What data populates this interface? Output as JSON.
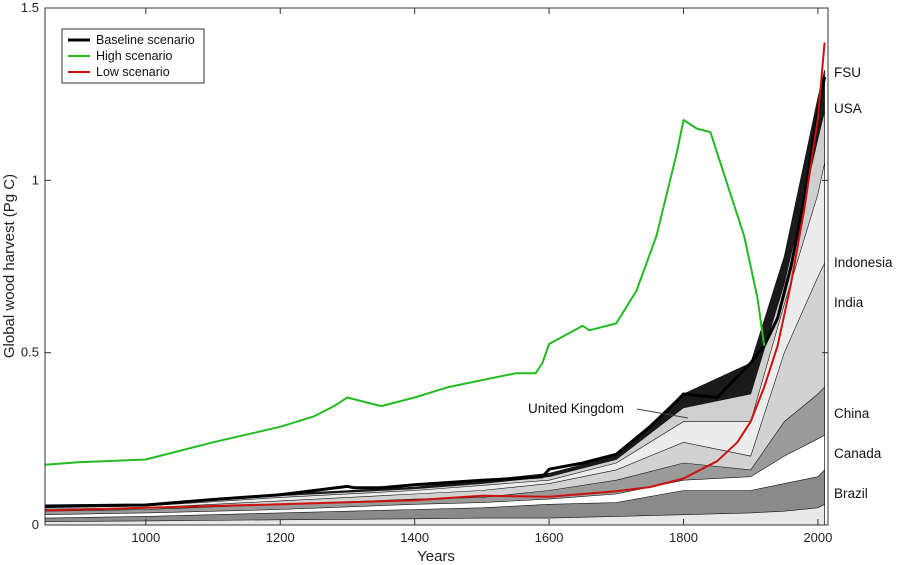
{
  "chart_data": {
    "type": "area",
    "title": "",
    "xlabel": "Years",
    "ylabel": "Global wood harvest (Pg C)",
    "xlim": [
      850,
      2015
    ],
    "ylim": [
      0,
      1.5
    ],
    "x_ticks": [
      1000,
      1200,
      1400,
      1600,
      1800,
      2000
    ],
    "y_ticks": [
      0,
      0.5,
      1,
      1.5
    ],
    "y_tick_labels": [
      "0",
      "0.5",
      "1",
      "1.5"
    ],
    "grid": false,
    "legend_position": "top-left",
    "legend": [
      {
        "label": "Baseline scenario",
        "color": "#000000"
      },
      {
        "label": "High scenario",
        "color": "#22bb22"
      },
      {
        "label": "Low scenario",
        "color": "#cc1111"
      }
    ],
    "country_labels": [
      "FSU",
      "USA",
      "Indonesia",
      "India",
      "China",
      "Canada",
      "Brazil"
    ],
    "annotation": "United Kingdom",
    "series": [
      {
        "name": "Baseline scenario",
        "color": "#000000",
        "x": [
          850,
          1000,
          1100,
          1200,
          1300,
          1310,
          1350,
          1400,
          1500,
          1550,
          1590,
          1600,
          1650,
          1700,
          1750,
          1790,
          1800,
          1850,
          1900,
          1920,
          1940,
          1960,
          1980,
          2000,
          2010
        ],
        "y": [
          0.055,
          0.058,
          0.074,
          0.088,
          0.112,
          0.108,
          0.108,
          0.117,
          0.13,
          0.135,
          0.14,
          0.162,
          0.18,
          0.205,
          0.285,
          0.36,
          0.38,
          0.37,
          0.47,
          0.52,
          0.6,
          0.75,
          0.95,
          1.2,
          1.3
        ]
      },
      {
        "name": "High scenario",
        "color": "#22bb22",
        "x": [
          850,
          900,
          1000,
          1100,
          1200,
          1250,
          1280,
          1300,
          1350,
          1400,
          1450,
          1500,
          1550,
          1580,
          1590,
          1600,
          1650,
          1660,
          1700,
          1730,
          1760,
          1790,
          1800,
          1820,
          1840,
          1870,
          1890,
          1910,
          1920
        ],
        "y": [
          0.175,
          0.182,
          0.19,
          0.24,
          0.285,
          0.315,
          0.345,
          0.37,
          0.345,
          0.37,
          0.4,
          0.42,
          0.44,
          0.44,
          0.47,
          0.525,
          0.578,
          0.565,
          0.585,
          0.68,
          0.84,
          1.08,
          1.175,
          1.15,
          1.14,
          0.96,
          0.84,
          0.66,
          0.52
        ]
      },
      {
        "name": "Low scenario",
        "color": "#cc1111",
        "x": [
          850,
          1000,
          1100,
          1200,
          1300,
          1400,
          1500,
          1600,
          1700,
          1750,
          1800,
          1850,
          1880,
          1900,
          1920,
          1940,
          1960,
          1980,
          2000,
          2010
        ],
        "y": [
          0.042,
          0.05,
          0.055,
          0.06,
          0.066,
          0.072,
          0.085,
          0.082,
          0.098,
          0.11,
          0.135,
          0.185,
          0.24,
          0.3,
          0.4,
          0.52,
          0.7,
          0.92,
          1.18,
          1.4
        ]
      }
    ],
    "stack_bands": [
      {
        "fill": "#e8e8e8",
        "x": [
          850,
          1000,
          1200,
          1400,
          1500,
          1600,
          1700,
          1800,
          1900,
          1950,
          2000,
          2010
        ],
        "y": [
          0.01,
          0.012,
          0.015,
          0.018,
          0.02,
          0.02,
          0.025,
          0.03,
          0.035,
          0.04,
          0.05,
          0.06
        ]
      },
      {
        "fill": "#8a8a8a",
        "x": [
          850,
          1000,
          1200,
          1400,
          1500,
          1600,
          1700,
          1800,
          1900,
          1950,
          2000,
          2010
        ],
        "y": [
          0.02,
          0.025,
          0.035,
          0.045,
          0.05,
          0.06,
          0.065,
          0.1,
          0.1,
          0.12,
          0.14,
          0.16
        ]
      },
      {
        "fill": "#ffffff",
        "x": [
          850,
          1000,
          1200,
          1400,
          1500,
          1600,
          1700,
          1800,
          1900,
          1950,
          2000,
          2010
        ],
        "y": [
          0.03,
          0.035,
          0.045,
          0.06,
          0.065,
          0.075,
          0.09,
          0.13,
          0.14,
          0.2,
          0.25,
          0.26
        ]
      },
      {
        "fill": "#9a9a9a",
        "x": [
          850,
          1000,
          1200,
          1400,
          1500,
          1600,
          1700,
          1800,
          1900,
          1950,
          2000,
          2010
        ],
        "y": [
          0.04,
          0.045,
          0.06,
          0.075,
          0.08,
          0.1,
          0.13,
          0.18,
          0.16,
          0.3,
          0.38,
          0.4
        ]
      },
      {
        "fill": "#d2d2d2",
        "x": [
          850,
          1000,
          1200,
          1400,
          1500,
          1600,
          1700,
          1800,
          1900,
          1950,
          2000,
          2010
        ],
        "y": [
          0.046,
          0.05,
          0.07,
          0.09,
          0.1,
          0.12,
          0.16,
          0.24,
          0.2,
          0.5,
          0.72,
          0.76
        ]
      },
      {
        "fill": "#ececec",
        "x": [
          850,
          1000,
          1200,
          1400,
          1500,
          1600,
          1700,
          1800,
          1900,
          1950,
          2000,
          2010
        ],
        "y": [
          0.05,
          0.055,
          0.08,
          0.1,
          0.115,
          0.13,
          0.18,
          0.3,
          0.3,
          0.64,
          0.96,
          1.05
        ]
      },
      {
        "fill": "#cfcfcf",
        "x": [
          850,
          1000,
          1200,
          1400,
          1500,
          1600,
          1700,
          1800,
          1900,
          1950,
          2000,
          2010
        ],
        "y": [
          0.053,
          0.057,
          0.085,
          0.105,
          0.12,
          0.14,
          0.19,
          0.34,
          0.38,
          0.7,
          1.12,
          1.2
        ]
      },
      {
        "fill": "#1a1a1a",
        "x": [
          850,
          1000,
          1200,
          1400,
          1500,
          1600,
          1700,
          1800,
          1900,
          1950,
          2000,
          2010
        ],
        "y": [
          0.056,
          0.06,
          0.09,
          0.11,
          0.13,
          0.15,
          0.2,
          0.38,
          0.47,
          0.78,
          1.24,
          1.32
        ]
      }
    ],
    "marker_lines": [
      {
        "from_x": 1720,
        "from_y": 0.32
      },
      {
        "from_x": 1790,
        "from_y": 0.3
      }
    ]
  }
}
